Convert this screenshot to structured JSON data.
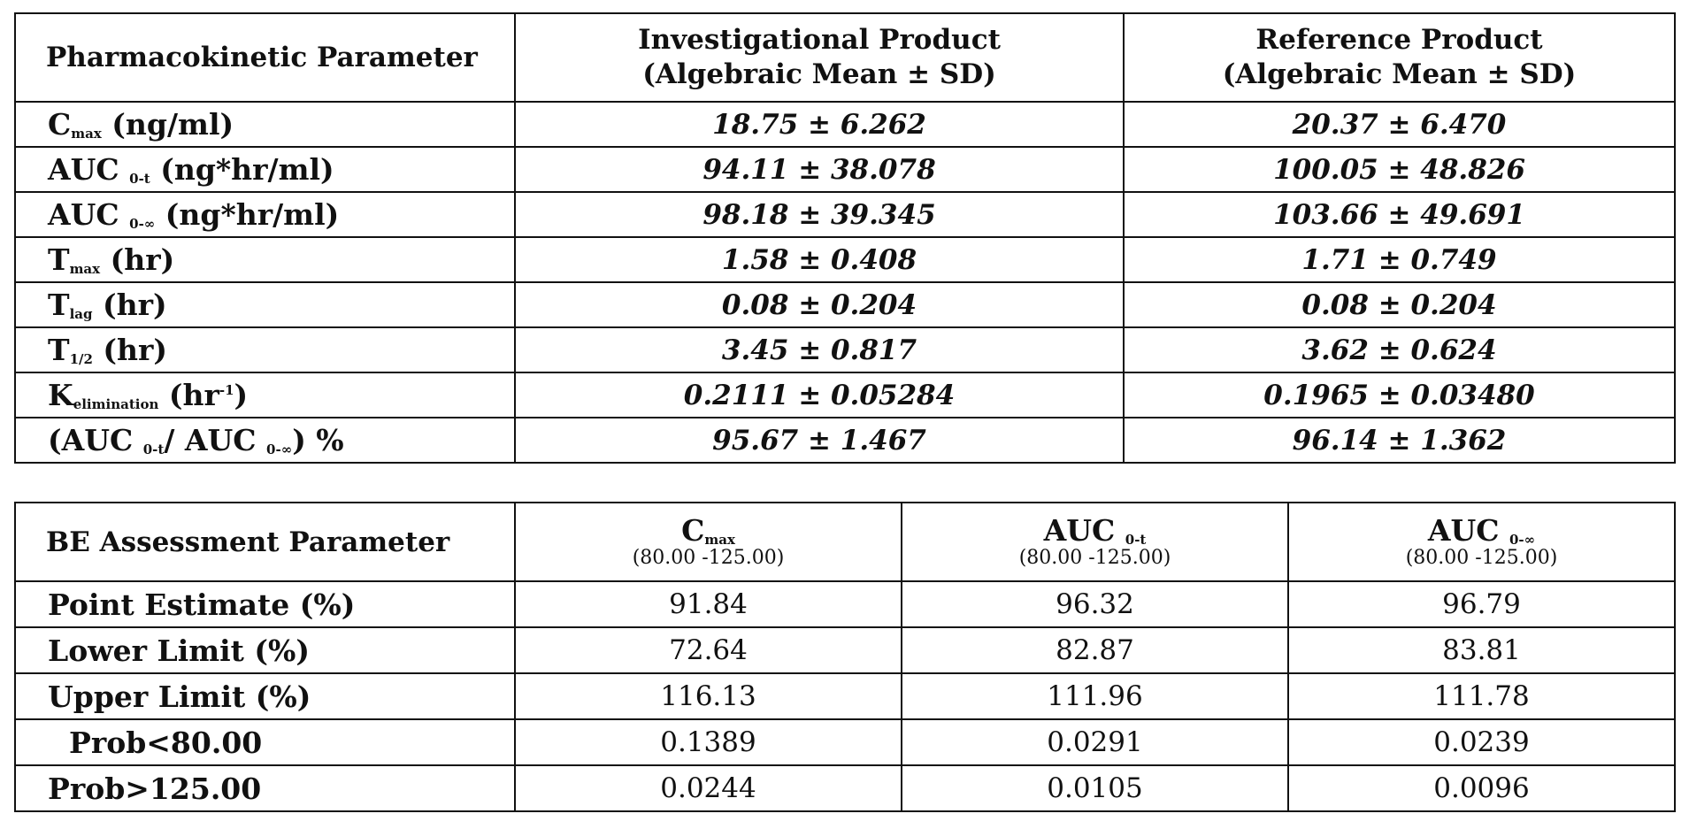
{
  "pk_table": {
    "headers": {
      "param": "Pharmacokinetic Parameter",
      "investigational_line1": "Investigational Product",
      "investigational_line2": "(Algebraic Mean ± SD)",
      "reference_line1": "Reference Product",
      "reference_line2": "(Algebraic Mean ± SD)"
    },
    "rows": [
      {
        "base": "C",
        "sub": "max",
        "suffix": " (ng/ml)",
        "investigational": "18.75 ± 6.262",
        "reference": "20.37 ± 6.470"
      },
      {
        "base": "AUC ",
        "sub": "0-t",
        "suffix": " (ng*hr/ml)",
        "investigational": "94.11 ± 38.078",
        "reference": "100.05 ± 48.826"
      },
      {
        "base": "AUC ",
        "sub": "0-∞",
        "suffix": " (ng*hr/ml)",
        "investigational": "98.18 ± 39.345",
        "reference": "103.66 ± 49.691"
      },
      {
        "base": "T",
        "sub": "max",
        "suffix": " (hr)",
        "investigational": "1.58 ± 0.408",
        "reference": "1.71 ± 0.749"
      },
      {
        "base": "T",
        "sub": "lag",
        "suffix": " (hr)",
        "investigational": "0.08 ± 0.204",
        "reference": "0.08 ± 0.204"
      },
      {
        "base": "T",
        "sub": "1/2",
        "suffix": " (hr)",
        "investigational": "3.45 ± 0.817",
        "reference": "3.62 ± 0.624"
      },
      {
        "base": "K",
        "sub": "elimination",
        "suffix": " (hr",
        "sup": "-1",
        "suffix2": ")",
        "investigational": "0.2111 ± 0.05284",
        "reference": "0.1965 ± 0.03480"
      },
      {
        "prefix": "(AUC ",
        "sub1": "0-t",
        "mid": "/ AUC ",
        "sub2": "0-∞",
        "suffix": ") %",
        "investigational": "95.67 ± 1.467",
        "reference": "96.14 ± 1.362"
      }
    ]
  },
  "be_table": {
    "headers": {
      "param": "BE Assessment Parameter",
      "cmax_base": "C",
      "cmax_sub": "max",
      "auc0t_base": "AUC ",
      "auc0t_sub": "0-t",
      "auc0inf_base": "AUC ",
      "auc0inf_sub": "0-∞",
      "range": "(80.00 -125.00)"
    },
    "rows": [
      {
        "label": "Point Estimate (%)",
        "cmax": "91.84",
        "auc0t": "96.32",
        "auc0inf": "96.79"
      },
      {
        "label": "Lower Limit (%)",
        "cmax": "72.64",
        "auc0t": "82.87",
        "auc0inf": "83.81"
      },
      {
        "label": "Upper Limit (%)",
        "cmax": "116.13",
        "auc0t": "111.96",
        "auc0inf": "111.78"
      },
      {
        "label": "Prob<80.00",
        "cmax": "0.1389",
        "auc0t": "0.0291",
        "auc0inf": "0.0239"
      },
      {
        "label": "Prob>125.00",
        "cmax": "0.0244",
        "auc0t": "0.0105",
        "auc0inf": "0.0096"
      }
    ]
  }
}
